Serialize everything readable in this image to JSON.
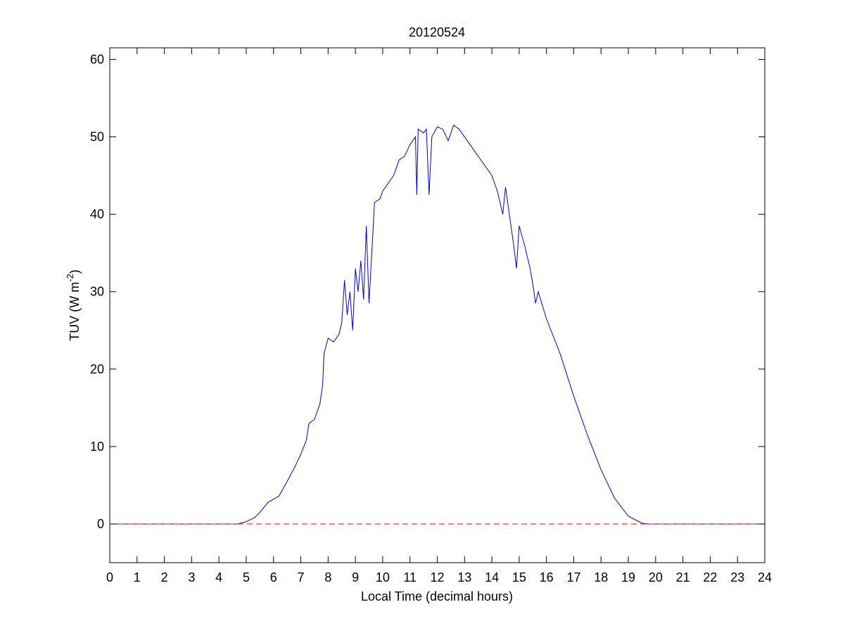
{
  "chart_data": {
    "type": "line",
    "title": "20120524",
    "xlabel": "Local Time (decimal hours)",
    "ylabel": {
      "text": "TUV (W m",
      "sup": "-2",
      "end": ")"
    },
    "xlim": [
      0,
      24
    ],
    "xticks": [
      0,
      1,
      2,
      3,
      4,
      5,
      6,
      7,
      8,
      9,
      10,
      11,
      12,
      13,
      14,
      15,
      16,
      17,
      18,
      19,
      20,
      21,
      22,
      23,
      24
    ],
    "ylim": [
      -5,
      61.5
    ],
    "yticks": [
      0,
      10,
      20,
      30,
      40,
      50,
      60
    ],
    "series": [
      {
        "color": "#0000cc",
        "dash": false,
        "x": [
          0,
          4.7,
          5.0,
          5.3,
          5.5,
          5.8,
          6.0,
          6.2,
          6.5,
          6.8,
          7.0,
          7.2,
          7.3,
          7.5,
          7.7,
          7.8,
          7.85,
          8.0,
          8.2,
          8.4,
          8.5,
          8.6,
          8.7,
          8.8,
          8.9,
          9.0,
          9.1,
          9.2,
          9.3,
          9.4,
          9.5,
          9.6,
          9.7,
          9.9,
          10.0,
          10.2,
          10.4,
          10.6,
          10.8,
          11.0,
          11.2,
          11.25,
          11.3,
          11.5,
          11.6,
          11.7,
          11.8,
          12.0,
          12.2,
          12.4,
          12.6,
          12.8,
          13.0,
          13.3,
          13.6,
          14.0,
          14.2,
          14.4,
          14.5,
          14.6,
          14.8,
          14.9,
          15.0,
          15.2,
          15.4,
          15.5,
          15.6,
          15.7,
          16.0,
          16.5,
          17.0,
          17.5,
          18.0,
          18.5,
          19.0,
          19.5,
          19.7,
          24
        ],
        "values": [
          0,
          0,
          0.3,
          0.8,
          1.5,
          2.8,
          3.2,
          3.6,
          5.5,
          7.5,
          9.0,
          10.8,
          13.0,
          13.5,
          15.5,
          18,
          22,
          24,
          23.5,
          24.5,
          26,
          31.5,
          27,
          30,
          25,
          33,
          30,
          34,
          29,
          38.5,
          28.5,
          35,
          41.5,
          42,
          43,
          44,
          45,
          47,
          47.5,
          49,
          50,
          42.5,
          51,
          50.5,
          51,
          42.5,
          50,
          51.3,
          51,
          49.5,
          51.5,
          51,
          50,
          48.5,
          47,
          45,
          43,
          40,
          43.5,
          41,
          36,
          33,
          38.5,
          36,
          33,
          31,
          28.5,
          30,
          26.5,
          22,
          16.5,
          11.5,
          7,
          3.3,
          1,
          0.1,
          0,
          0
        ]
      },
      {
        "color": "#ff0000",
        "dash": true,
        "x": [
          0,
          24
        ],
        "values": [
          0,
          0
        ]
      }
    ]
  }
}
